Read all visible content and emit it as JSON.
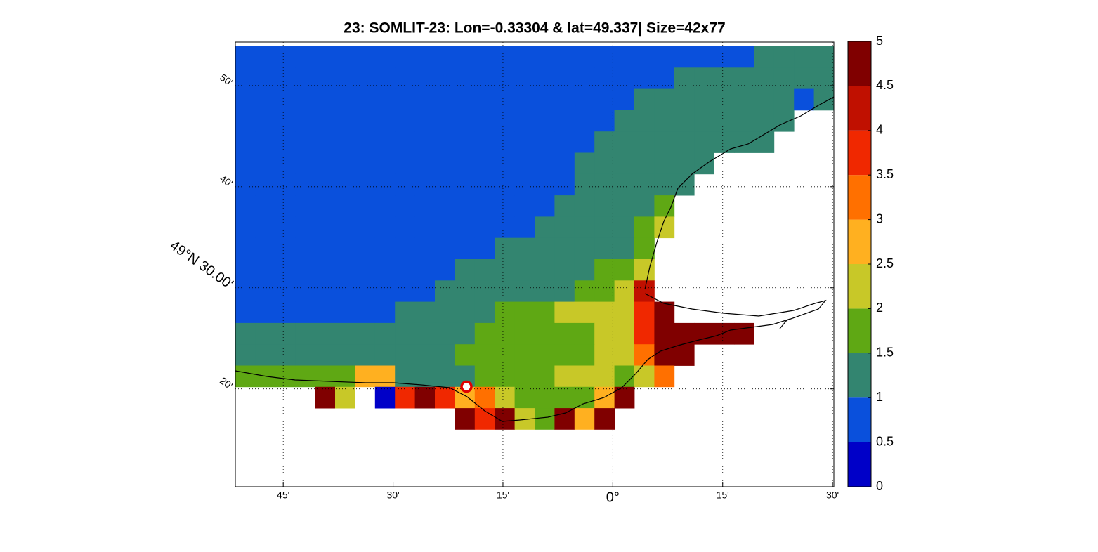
{
  "chart_data": {
    "type": "heatmap",
    "title": "23: SOMLIT-23: Lon=-0.33304 & lat=49.337| Size=42x77",
    "xlim": [
      -0.859,
      0.503
    ],
    "ylim": [
      49.172,
      49.905
    ],
    "xticks": [
      {
        "value": -0.75,
        "label": "45'"
      },
      {
        "value": -0.5,
        "label": "30'"
      },
      {
        "value": -0.25,
        "label": "15'"
      },
      {
        "value": 0,
        "label": "0°"
      },
      {
        "value": 0.25,
        "label": "15'"
      },
      {
        "value": 0.5,
        "label": "30'"
      }
    ],
    "yticks": [
      {
        "value": 49.3333,
        "label": "20'"
      },
      {
        "value": 49.5,
        "label": "49°N 30.00'"
      },
      {
        "value": 49.6667,
        "label": "40'"
      },
      {
        "value": 49.8333,
        "label": "50'"
      }
    ],
    "grid": true,
    "station": {
      "lon": -0.33304,
      "lat": 49.337,
      "color": "#e00000"
    },
    "clim": [
      0,
      5
    ],
    "colorbar_ticks": [
      0,
      0.5,
      1,
      1.5,
      2,
      2.5,
      3,
      3.5,
      4,
      4.5,
      5
    ],
    "colormap": [
      "#0000c8",
      "#0a50dc",
      "#338570",
      "#5fa814",
      "#c8c828",
      "#ffb020",
      "#ff7000",
      "#f02800",
      "#c01000",
      "#800000"
    ],
    "values": [
      [
        0.75,
        0.75,
        0.75,
        0.75,
        0.75,
        0.75,
        0.75,
        0.75,
        0.75,
        0.75,
        0.75,
        0.75,
        0.75,
        0.75,
        0.75,
        0.75,
        0.75,
        0.75,
        0.75,
        0.75,
        0.75,
        0.75,
        0.75,
        0.75,
        0.75,
        0.75,
        1.25,
        1.25,
        1.25,
        1.25
      ],
      [
        0.75,
        0.75,
        0.75,
        0.75,
        0.75,
        0.75,
        0.75,
        0.75,
        0.75,
        0.75,
        0.75,
        0.75,
        0.75,
        0.75,
        0.75,
        0.75,
        0.75,
        0.75,
        0.75,
        0.75,
        0.75,
        0.75,
        1.25,
        1.25,
        1.25,
        1.25,
        1.25,
        1.25,
        1.25,
        1.25
      ],
      [
        0.75,
        0.75,
        0.75,
        0.75,
        0.75,
        0.75,
        0.75,
        0.75,
        0.75,
        0.75,
        0.75,
        0.75,
        0.75,
        0.75,
        0.75,
        0.75,
        0.75,
        0.75,
        0.75,
        0.75,
        1.25,
        1.25,
        1.25,
        1.25,
        1.25,
        1.25,
        1.25,
        1.25,
        0.75,
        1.25
      ],
      [
        0.75,
        0.75,
        0.75,
        0.75,
        0.75,
        0.75,
        0.75,
        0.75,
        0.75,
        0.75,
        0.75,
        0.75,
        0.75,
        0.75,
        0.75,
        0.75,
        0.75,
        0.75,
        0.75,
        1.25,
        1.25,
        1.25,
        1.25,
        1.25,
        1.25,
        1.25,
        1.25,
        1.25,
        null,
        null
      ],
      [
        0.75,
        0.75,
        0.75,
        0.75,
        0.75,
        0.75,
        0.75,
        0.75,
        0.75,
        0.75,
        0.75,
        0.75,
        0.75,
        0.75,
        0.75,
        0.75,
        0.75,
        0.75,
        1.25,
        1.25,
        1.25,
        1.25,
        1.25,
        1.25,
        1.25,
        1.25,
        1.25,
        null,
        null,
        null
      ],
      [
        0.75,
        0.75,
        0.75,
        0.75,
        0.75,
        0.75,
        0.75,
        0.75,
        0.75,
        0.75,
        0.75,
        0.75,
        0.75,
        0.75,
        0.75,
        0.75,
        0.75,
        1.25,
        1.25,
        1.25,
        1.25,
        1.25,
        1.25,
        1.25,
        null,
        null,
        null,
        null,
        null,
        null
      ],
      [
        0.75,
        0.75,
        0.75,
        0.75,
        0.75,
        0.75,
        0.75,
        0.75,
        0.75,
        0.75,
        0.75,
        0.75,
        0.75,
        0.75,
        0.75,
        0.75,
        0.75,
        1.25,
        1.25,
        1.25,
        1.25,
        1.25,
        1.25,
        null,
        null,
        null,
        null,
        null,
        null,
        null
      ],
      [
        0.75,
        0.75,
        0.75,
        0.75,
        0.75,
        0.75,
        0.75,
        0.75,
        0.75,
        0.75,
        0.75,
        0.75,
        0.75,
        0.75,
        0.75,
        0.75,
        1.25,
        1.25,
        1.25,
        1.25,
        1.25,
        1.75,
        null,
        null,
        null,
        null,
        null,
        null,
        null,
        null
      ],
      [
        0.75,
        0.75,
        0.75,
        0.75,
        0.75,
        0.75,
        0.75,
        0.75,
        0.75,
        0.75,
        0.75,
        0.75,
        0.75,
        0.75,
        0.75,
        1.25,
        1.25,
        1.25,
        1.25,
        1.25,
        1.75,
        2.25,
        null,
        null,
        null,
        null,
        null,
        null,
        null,
        null
      ],
      [
        0.75,
        0.75,
        0.75,
        0.75,
        0.75,
        0.75,
        0.75,
        0.75,
        0.75,
        0.75,
        0.75,
        0.75,
        0.75,
        1.25,
        1.25,
        1.25,
        1.25,
        1.25,
        1.25,
        1.25,
        1.75,
        null,
        null,
        null,
        null,
        null,
        null,
        null,
        null,
        null
      ],
      [
        0.75,
        0.75,
        0.75,
        0.75,
        0.75,
        0.75,
        0.75,
        0.75,
        0.75,
        0.75,
        0.75,
        1.25,
        1.25,
        1.25,
        1.25,
        1.25,
        1.25,
        1.25,
        1.75,
        1.75,
        2.25,
        null,
        null,
        null,
        null,
        null,
        null,
        null,
        null,
        null
      ],
      [
        0.75,
        0.75,
        0.75,
        0.75,
        0.75,
        0.75,
        0.75,
        0.75,
        0.75,
        0.75,
        1.25,
        1.25,
        1.25,
        1.25,
        1.25,
        1.25,
        1.25,
        1.75,
        1.75,
        2.25,
        4.25,
        null,
        null,
        null,
        null,
        null,
        null,
        null,
        null,
        null
      ],
      [
        0.75,
        0.75,
        0.75,
        0.75,
        0.75,
        0.75,
        0.75,
        0.75,
        1.25,
        1.25,
        1.25,
        1.25,
        1.25,
        1.75,
        1.75,
        1.75,
        2.25,
        2.25,
        2.25,
        2.25,
        3.75,
        4.75,
        null,
        null,
        null,
        null,
        null,
        null,
        null,
        null
      ],
      [
        1.25,
        1.25,
        1.25,
        1.25,
        1.25,
        1.25,
        1.25,
        1.25,
        1.25,
        1.25,
        1.25,
        1.25,
        1.75,
        1.75,
        1.75,
        1.75,
        1.75,
        1.75,
        2.25,
        2.25,
        3.75,
        4.75,
        4.75,
        4.75,
        4.75,
        4.75,
        null,
        null,
        null,
        null
      ],
      [
        1.25,
        1.25,
        1.25,
        1.25,
        1.25,
        1.25,
        1.25,
        1.25,
        1.25,
        1.25,
        1.25,
        1.75,
        1.75,
        1.75,
        1.75,
        1.75,
        1.75,
        1.75,
        2.25,
        2.25,
        3.25,
        4.75,
        4.75,
        null,
        null,
        null,
        null,
        null,
        null,
        null
      ],
      [
        1.75,
        1.75,
        1.75,
        1.75,
        1.75,
        1.75,
        2.75,
        2.75,
        1.25,
        1.25,
        1.25,
        1.25,
        1.75,
        1.75,
        1.75,
        1.75,
        2.25,
        2.25,
        2.25,
        1.75,
        2.25,
        3.25,
        null,
        null,
        null,
        null,
        null,
        null,
        null,
        null
      ],
      [
        null,
        null,
        null,
        null,
        4.75,
        2.25,
        null,
        0.25,
        3.75,
        4.75,
        3.75,
        2.75,
        3.25,
        2.25,
        1.75,
        1.75,
        1.75,
        1.75,
        2.75,
        4.75,
        null,
        null,
        null,
        null,
        null,
        null,
        null,
        null,
        null,
        null
      ],
      [
        null,
        null,
        null,
        null,
        null,
        null,
        null,
        null,
        null,
        null,
        null,
        4.75,
        3.75,
        4.75,
        2.25,
        1.75,
        4.75,
        2.75,
        4.75,
        null,
        null,
        null,
        null,
        null,
        null,
        null,
        null,
        null,
        null,
        null
      ]
    ]
  }
}
